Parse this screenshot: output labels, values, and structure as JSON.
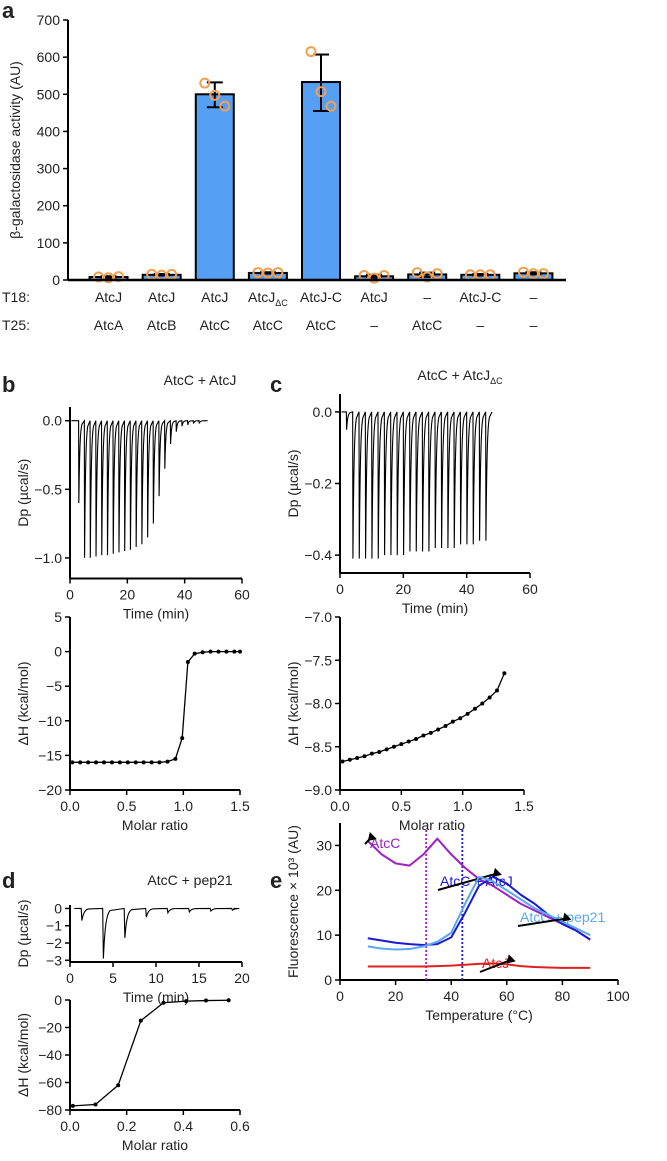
{
  "panels": {
    "a": "a",
    "b": "b",
    "c": "c",
    "d": "d",
    "e": "e"
  },
  "chart_data": [
    {
      "id": "a",
      "type": "bar",
      "ylabel": "β-galactosidase activity (AU)",
      "ylim": [
        0,
        700
      ],
      "yticks": [
        0,
        100,
        200,
        300,
        400,
        500,
        600,
        700
      ],
      "row_labels": [
        "T18:",
        "T25:"
      ],
      "categories": [
        {
          "t18": "AtcJ",
          "t18_sub": "",
          "t25": "AtcA"
        },
        {
          "t18": "AtcJ",
          "t18_sub": "",
          "t25": "AtcB"
        },
        {
          "t18": "AtcJ",
          "t18_sub": "",
          "t25": "AtcC"
        },
        {
          "t18": "AtcJ",
          "t18_sub": "ΔC",
          "t25": "AtcC"
        },
        {
          "t18": "AtcJ-C",
          "t18_sub": "",
          "t25": "AtcC"
        },
        {
          "t18": "AtcJ",
          "t18_sub": "",
          "t25": "–"
        },
        {
          "t18": "–",
          "t18_sub": "",
          "t25": "AtcC"
        },
        {
          "t18": "AtcJ-C",
          "t18_sub": "",
          "t25": "–"
        },
        {
          "t18": "–",
          "t18_sub": "",
          "t25": "–"
        }
      ],
      "values": [
        8,
        14,
        500,
        19,
        533,
        10,
        15,
        14,
        18
      ],
      "errors": [
        [
          6,
          10
        ],
        [
          12,
          16
        ],
        [
          465,
          532
        ],
        [
          17,
          21
        ],
        [
          455,
          607
        ],
        [
          6,
          14
        ],
        [
          8,
          20
        ],
        [
          12,
          16
        ],
        [
          15,
          21
        ]
      ],
      "points": [
        [
          8,
          6,
          9
        ],
        [
          15,
          13,
          15
        ],
        [
          530,
          497,
          468
        ],
        [
          20,
          19,
          20
        ],
        [
          615,
          507,
          468
        ],
        [
          12,
          5,
          12
        ],
        [
          20,
          8,
          17
        ],
        [
          14,
          14,
          14
        ],
        [
          21,
          17,
          17
        ]
      ],
      "bar_color": "#559ff5",
      "point_color": "#f0a050"
    },
    {
      "id": "b-top",
      "type": "line",
      "title": "AtcC + AtcJ",
      "xlabel": "Time (min)",
      "ylabel": "Dp (µcal/s)",
      "xlim": [
        0,
        60
      ],
      "ylim": [
        -1.15,
        0.1
      ],
      "xticks": [
        0,
        20,
        40,
        60
      ],
      "yticks": [
        0,
        -0.5,
        -1
      ],
      "ytick_labels": [
        "0.0",
        "−0.5",
        "−1.0"
      ],
      "injections_min": [
        3,
        5,
        7,
        9,
        11,
        13,
        15,
        17,
        19,
        21,
        23,
        25,
        27,
        29,
        31,
        33,
        35,
        37,
        39,
        41,
        43,
        45
      ],
      "peaks": [
        -0.6,
        -1.0,
        -1.0,
        -0.99,
        -0.98,
        -0.98,
        -0.97,
        -0.96,
        -0.95,
        -0.94,
        -0.92,
        -0.9,
        -0.85,
        -0.75,
        -0.55,
        -0.35,
        -0.17,
        -0.08,
        -0.04,
        -0.03,
        -0.02,
        -0.02
      ],
      "end_min": 48
    },
    {
      "id": "b-bottom",
      "type": "scatter-line",
      "xlabel": "Molar ratio",
      "ylabel": "ΔH (kcal/mol)",
      "xlim": [
        0,
        1.5
      ],
      "ylim": [
        -20,
        5
      ],
      "xticks": [
        0,
        0.5,
        1,
        1.5
      ],
      "xtick_labels": [
        "0.0",
        "0.5",
        "1.0",
        "1.5"
      ],
      "yticks": [
        5,
        0,
        -5,
        -10,
        -15,
        -20
      ],
      "ytick_labels": [
        "5",
        "0",
        "−5",
        "−10",
        "−15",
        "−20"
      ],
      "x": [
        0.02,
        0.09,
        0.16,
        0.23,
        0.3,
        0.37,
        0.44,
        0.51,
        0.58,
        0.65,
        0.72,
        0.79,
        0.86,
        0.93,
        0.99,
        1.04,
        1.1,
        1.17,
        1.24,
        1.31,
        1.38,
        1.45,
        1.5
      ],
      "y": [
        -16,
        -16,
        -16,
        -16,
        -16,
        -16,
        -16,
        -16,
        -16,
        -16,
        -16,
        -16,
        -15.9,
        -15.5,
        -12.5,
        -1.5,
        -0.3,
        -0.1,
        0,
        0,
        0,
        0,
        0
      ]
    },
    {
      "id": "c-top",
      "type": "line",
      "title": "AtcC + AtcJ",
      "title_sub": "ΔC",
      "xlabel": "Time (min)",
      "ylabel": "Dp (µcal/s)",
      "xlim": [
        0,
        60
      ],
      "ylim": [
        -0.45,
        0.05
      ],
      "xticks": [
        0,
        20,
        40,
        60
      ],
      "yticks": [
        0,
        -0.2,
        -0.4
      ],
      "ytick_labels": [
        "0.0",
        "−0.2",
        "−0.4"
      ],
      "injections_min": [
        2,
        4,
        6,
        8,
        10,
        12,
        14,
        16,
        18,
        20,
        22,
        24,
        26,
        28,
        30,
        32,
        34,
        36,
        38,
        40,
        42,
        44,
        46
      ],
      "peaks": [
        -0.05,
        -0.41,
        -0.41,
        -0.41,
        -0.41,
        -0.41,
        -0.4,
        -0.4,
        -0.4,
        -0.4,
        -0.39,
        -0.39,
        -0.39,
        -0.39,
        -0.38,
        -0.38,
        -0.38,
        -0.38,
        -0.37,
        -0.37,
        -0.37,
        -0.36,
        -0.36
      ],
      "end_min": 48
    },
    {
      "id": "c-bottom",
      "type": "scatter-line",
      "xlabel": "Molar ratio",
      "ylabel": "ΔH (kcal/mol)",
      "xlim": [
        0,
        1.5
      ],
      "ylim": [
        -9,
        -7
      ],
      "xticks": [
        0,
        0.5,
        1,
        1.5
      ],
      "xtick_labels": [
        "0.0",
        "0.5",
        "1.0",
        "1.5"
      ],
      "yticks": [
        -7,
        -7.5,
        -8,
        -8.5,
        -9
      ],
      "ytick_labels": [
        "−7.0",
        "−7.5",
        "−8.0",
        "−8.5",
        "−9.0"
      ],
      "x": [
        0.02,
        0.08,
        0.14,
        0.2,
        0.26,
        0.32,
        0.38,
        0.44,
        0.5,
        0.56,
        0.62,
        0.68,
        0.74,
        0.8,
        0.86,
        0.92,
        0.98,
        1.04,
        1.1,
        1.16,
        1.22,
        1.28,
        1.34
      ],
      "y": [
        -8.67,
        -8.65,
        -8.63,
        -8.61,
        -8.58,
        -8.56,
        -8.53,
        -8.5,
        -8.47,
        -8.44,
        -8.41,
        -8.37,
        -8.34,
        -8.3,
        -8.26,
        -8.21,
        -8.17,
        -8.12,
        -8.06,
        -8.0,
        -7.93,
        -7.85,
        -7.65
      ]
    },
    {
      "id": "d-top",
      "type": "line",
      "title": "AtcC + pep21",
      "xlabel": "Time (min)",
      "ylabel": "Dp (µcal/s)",
      "xlim": [
        0,
        20
      ],
      "ylim": [
        -3.1,
        0.2
      ],
      "xticks": [
        0,
        5,
        10,
        15,
        20
      ],
      "yticks": [
        0,
        -1,
        -2,
        -3
      ],
      "ytick_labels": [
        "0",
        "−1",
        "−2",
        "−3"
      ],
      "injections_min": [
        1.3,
        3.8,
        6.3,
        8.8,
        11.3,
        13.8,
        16.3,
        18.8
      ],
      "peaks": [
        -0.7,
        -2.9,
        -1.7,
        -0.5,
        -0.25,
        -0.2,
        -0.15,
        -0.1
      ],
      "end_min": 19
    },
    {
      "id": "d-bottom",
      "type": "scatter-line",
      "xlabel": "Molar ratio",
      "ylabel": "ΔH (kcal/mol)",
      "xlim": [
        0,
        0.6
      ],
      "ylim": [
        -80,
        0
      ],
      "xticks": [
        0,
        0.2,
        0.4,
        0.6
      ],
      "xtick_labels": [
        "0.0",
        "0.2",
        "0.4",
        "0.6"
      ],
      "yticks": [
        0,
        -20,
        -40,
        -60,
        -80
      ],
      "ytick_labels": [
        "0",
        "−20",
        "−40",
        "−60",
        "−80"
      ],
      "x": [
        0.01,
        0.09,
        0.17,
        0.25,
        0.33,
        0.41,
        0.48,
        0.56
      ],
      "y": [
        -77,
        -76,
        -62,
        -15,
        -2,
        -0.8,
        -0.4,
        -0.2
      ]
    },
    {
      "id": "e",
      "type": "line",
      "xlabel": "Temperature (°C)",
      "ylabel": "Fluorescence × 10³ (AU)",
      "xlim": [
        0,
        100
      ],
      "ylim": [
        0,
        35
      ],
      "xticks": [
        0,
        20,
        40,
        60,
        80,
        100
      ],
      "yticks": [
        0,
        10,
        20,
        30
      ],
      "x": [
        10,
        15,
        20,
        25,
        30,
        35,
        40,
        45,
        50,
        55,
        60,
        65,
        70,
        75,
        80,
        85,
        90
      ],
      "series": [
        {
          "name": "AtcC",
          "color": "#a020c8",
          "values": [
            31,
            28,
            26,
            25.5,
            28,
            31.5,
            28,
            25,
            22.5,
            21,
            19,
            17,
            15.5,
            14,
            12.5,
            11,
            9
          ]
        },
        {
          "name": "AtcC + AtcJ",
          "color": "#1a1ad0",
          "values": [
            9.3,
            8.8,
            8.3,
            8,
            7.8,
            8,
            9.5,
            15,
            21,
            23,
            21.5,
            19,
            17,
            14.5,
            12.5,
            11,
            9
          ]
        },
        {
          "name": "AtcC + pep21",
          "color": "#5aa8f0",
          "values": [
            7.5,
            7,
            6.8,
            6.9,
            7.5,
            8.5,
            10.5,
            17,
            23,
            22,
            20,
            18,
            16,
            14.5,
            13,
            11.5,
            10
          ]
        },
        {
          "name": "AtcJ",
          "color": "#e02020",
          "values": [
            3,
            3,
            3,
            3,
            3,
            3.1,
            3.2,
            3.4,
            3.6,
            3.7,
            3.5,
            3.1,
            2.9,
            2.8,
            2.7,
            2.7,
            2.7
          ]
        }
      ],
      "vlines": [
        {
          "x": 31,
          "color": "#a020c8"
        },
        {
          "x": 44,
          "color": "#1a1ad0"
        }
      ]
    }
  ]
}
